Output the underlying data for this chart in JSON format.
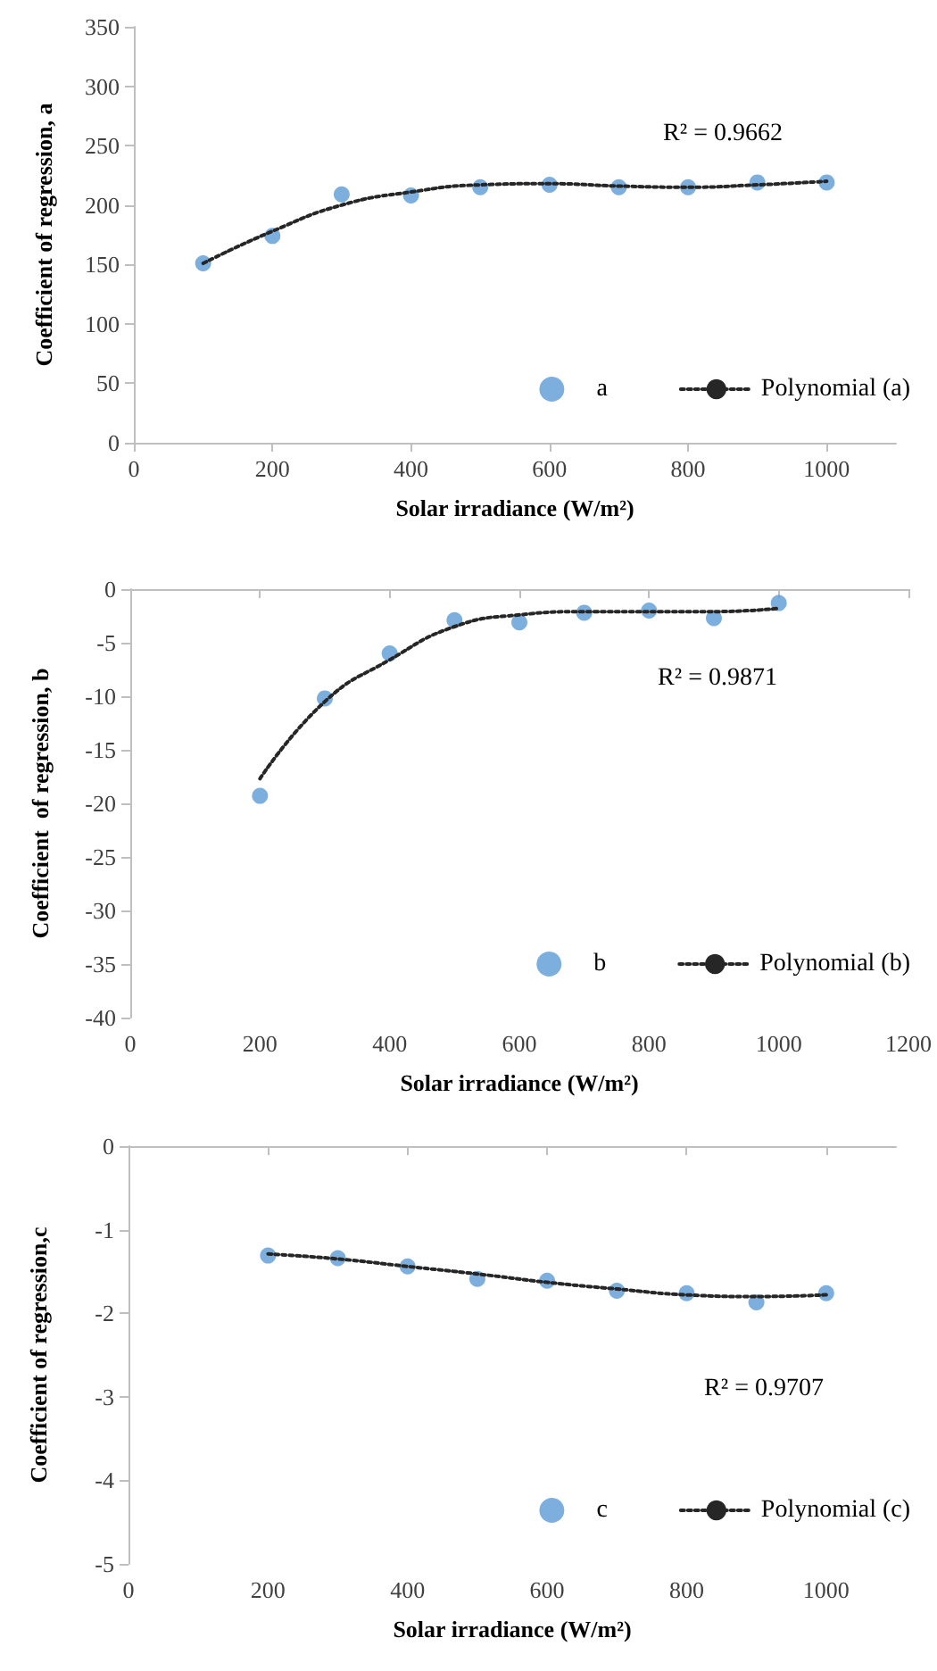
{
  "chart_data": [
    {
      "type": "scatter",
      "xlabel": "Solar irradiance (W/m²)",
      "ylabel": "Coefficient of regression, a",
      "x": [
        100,
        200,
        300,
        400,
        500,
        600,
        700,
        800,
        900,
        1000
      ],
      "series": [
        {
          "name": "a",
          "color": "#5b9bd5",
          "marker": "circle",
          "values": [
            151,
            174,
            209,
            208,
            215,
            217,
            215,
            215,
            219,
            219
          ]
        },
        {
          "name": "Polynomial (a)",
          "type": "line",
          "color": "#262626",
          "marker": "none",
          "line_style": "dotted",
          "values": [
            151,
            178,
            200,
            211,
            217,
            218,
            216,
            215,
            217,
            220
          ]
        }
      ],
      "xlim": [
        0,
        1100
      ],
      "xticks": [
        0,
        200,
        400,
        600,
        800,
        1000
      ],
      "ylim": [
        0,
        350
      ],
      "yticks": [
        0,
        50,
        100,
        150,
        200,
        250,
        300,
        350
      ],
      "annotations": [
        "R² = 0.9662"
      ],
      "legend": "bottom right",
      "grid": false
    },
    {
      "type": "scatter",
      "xlabel": "Solar irradiance (W/m²)",
      "ylabel": "Coefficient  of regression, b",
      "x": [
        200,
        300,
        400,
        500,
        600,
        700,
        800,
        900,
        1000
      ],
      "series": [
        {
          "name": "b",
          "color": "#5b9bd5",
          "marker": "circle",
          "values": [
            -19.3,
            -10.2,
            -6.0,
            -2.9,
            -3.1,
            -2.2,
            -2.0,
            -2.7,
            -1.3
          ]
        },
        {
          "name": "Polynomial (b)",
          "type": "line",
          "color": "#262626",
          "marker": "none",
          "line_style": "dotted",
          "values": [
            -17.7,
            -10.5,
            -6.6,
            -3.5,
            -2.4,
            -2.1,
            -2.1,
            -2.1,
            -1.8
          ]
        }
      ],
      "xlim": [
        0,
        1200
      ],
      "xticks": [
        0,
        200,
        400,
        600,
        800,
        1000,
        1200
      ],
      "ylim": [
        -40,
        0
      ],
      "yticks": [
        -40,
        -35,
        -30,
        -25,
        -20,
        -15,
        -10,
        -5,
        0
      ],
      "annotations": [
        "R² = 0.9871"
      ],
      "legend": "bottom right",
      "grid": false
    },
    {
      "type": "scatter",
      "xlabel": "Solar irradiance (W/m²)",
      "ylabel": "Coefficient of regression,c",
      "x": [
        200,
        300,
        400,
        500,
        600,
        700,
        800,
        900,
        1000
      ],
      "series": [
        {
          "name": "c",
          "color": "#5b9bd5",
          "marker": "circle",
          "values": [
            -1.31,
            -1.34,
            -1.44,
            -1.59,
            -1.61,
            -1.73,
            -1.76,
            -1.87,
            -1.76
          ]
        },
        {
          "name": "Polynomial (c)",
          "type": "line",
          "color": "#262626",
          "marker": "none",
          "line_style": "dotted",
          "values": [
            -1.29,
            -1.35,
            -1.44,
            -1.53,
            -1.63,
            -1.71,
            -1.78,
            -1.8,
            -1.78
          ]
        }
      ],
      "xlim": [
        0,
        1100
      ],
      "xticks": [
        0,
        200,
        400,
        600,
        800,
        1000
      ],
      "ylim": [
        -5,
        0
      ],
      "yticks": [
        -5,
        -4,
        -3,
        -2,
        -1,
        0
      ],
      "annotations": [
        "R² = 0.9707"
      ],
      "legend": "bottom right",
      "grid": false
    }
  ]
}
